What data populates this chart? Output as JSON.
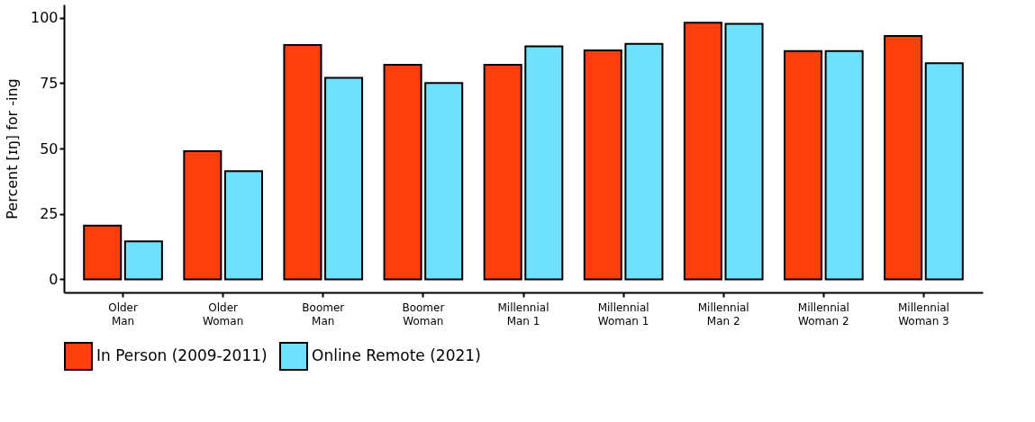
{
  "chart_data": {
    "type": "bar",
    "ylabel": "Percent [ɪŋ] for -ing",
    "categories": [
      "Older\nMan",
      "Older\nWoman",
      "Boomer\nMan",
      "Boomer\nWoman",
      "Millennial\nMan 1",
      "Millennial\nWoman 1",
      "Millennial\nMan 2",
      "Millennial\nWoman 2",
      "Millennial\nWoman 3"
    ],
    "series": [
      {
        "name": "In Person (2009-2011)",
        "color": "#fc3f0d",
        "values": [
          20.5,
          49,
          89.5,
          82,
          82,
          87.5,
          98,
          87.2,
          93
        ]
      },
      {
        "name": "Online Remote (2021)",
        "color": "#6fe0fd",
        "values": [
          14.5,
          41.3,
          77,
          75,
          89,
          90,
          97.6,
          87.2,
          82.6
        ]
      }
    ],
    "ylim": [
      -5,
      105
    ],
    "yticks": [
      0,
      25,
      50,
      75,
      100
    ],
    "grid": false,
    "legend": "bottom"
  }
}
